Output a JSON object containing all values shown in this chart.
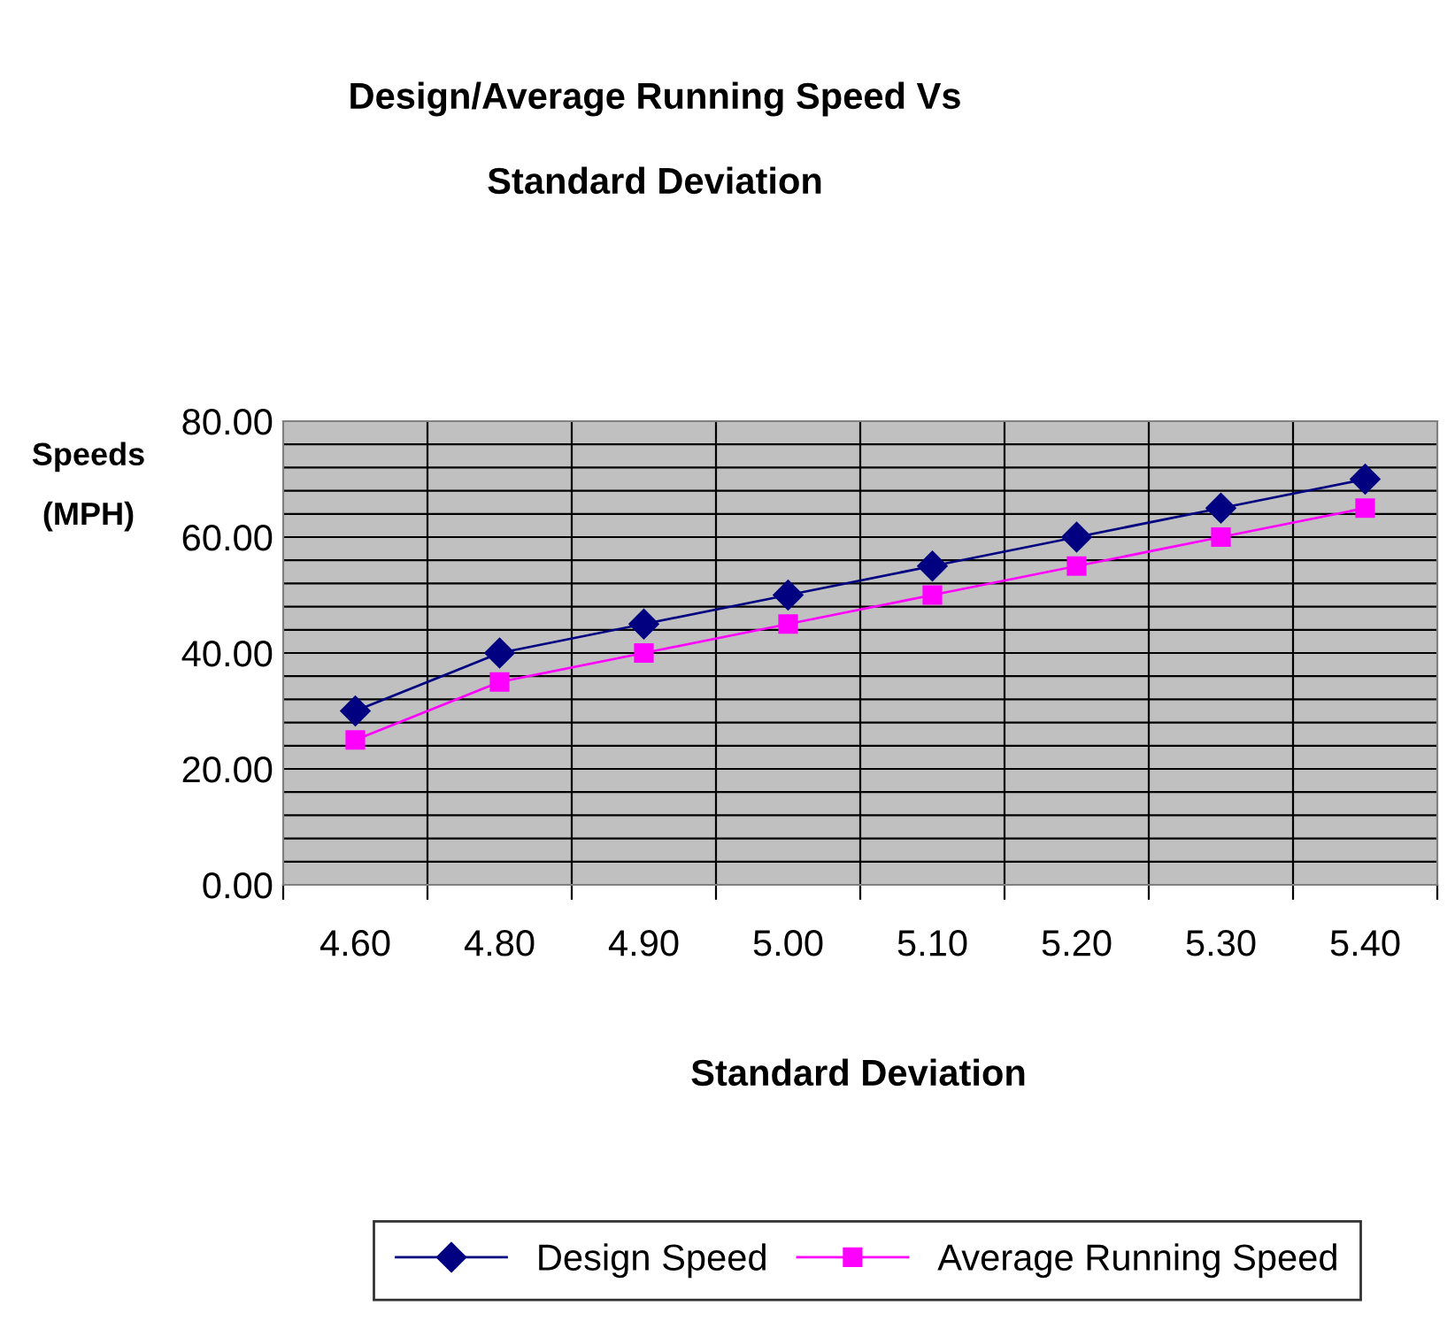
{
  "chart_data": {
    "type": "line",
    "title": "Design/Average Running Speed Vs\n\nStandard Deviation",
    "xlabel": "Standard Deviation",
    "ylabel": "Speeds\n\n(MPH)",
    "categories": [
      "4.60",
      "4.80",
      "4.90",
      "5.00",
      "5.10",
      "5.20",
      "5.30",
      "5.40"
    ],
    "series": [
      {
        "name": "Design Speed",
        "color": "#000080",
        "marker": "diamond",
        "values": [
          30,
          40,
          45,
          50,
          55,
          60,
          65,
          70
        ]
      },
      {
        "name": "Average Running Speed",
        "color": "#ff00ff",
        "marker": "square",
        "values": [
          25,
          35,
          40,
          45,
          50,
          55,
          60,
          65
        ]
      }
    ],
    "ylim": [
      0,
      80
    ],
    "yticks": [
      {
        "value": 0,
        "label": "0.00"
      },
      {
        "value": 4,
        "label": null
      },
      {
        "value": 8,
        "label": null
      },
      {
        "value": 12,
        "label": null
      },
      {
        "value": 16,
        "label": null
      },
      {
        "value": 20,
        "label": "20.00"
      },
      {
        "value": 24,
        "label": null
      },
      {
        "value": 28,
        "label": null
      },
      {
        "value": 32,
        "label": null
      },
      {
        "value": 36,
        "label": null
      },
      {
        "value": 40,
        "label": "40.00"
      },
      {
        "value": 44,
        "label": null
      },
      {
        "value": 48,
        "label": null
      },
      {
        "value": 52,
        "label": null
      },
      {
        "value": 56,
        "label": null
      },
      {
        "value": 60,
        "label": "60.00"
      },
      {
        "value": 64,
        "label": null
      },
      {
        "value": 68,
        "label": null
      },
      {
        "value": 72,
        "label": null
      },
      {
        "value": 76,
        "label": null
      },
      {
        "value": 80,
        "label": "80.00"
      }
    ],
    "grid": true,
    "legend": "bottom",
    "line_style": "solid"
  }
}
